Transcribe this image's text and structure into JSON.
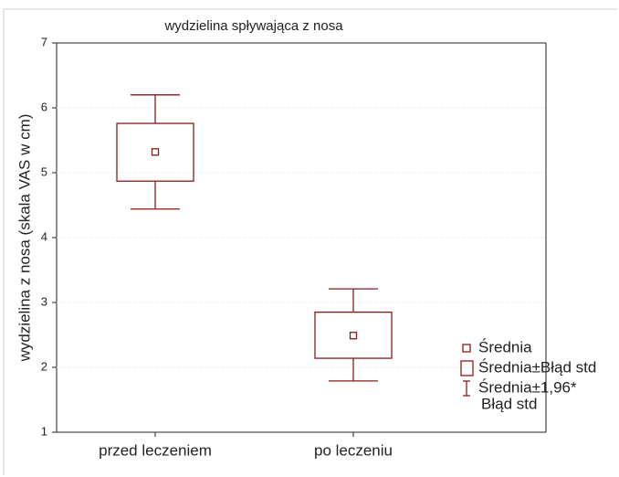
{
  "chart_data": {
    "type": "box",
    "title": "wydzielina spływająca z nosa",
    "y_label": "wydzielina z nosa (skala VAS w cm)",
    "categories": [
      "przed leczeniem",
      "po leczeniu"
    ],
    "mean": [
      5.32,
      2.49
    ],
    "box_low": [
      4.87,
      2.14
    ],
    "box_high": [
      5.76,
      2.85
    ],
    "whisker_low": [
      4.44,
      1.79
    ],
    "whisker_high": [
      6.2,
      3.21
    ],
    "color": "#8b1a1a",
    "ylim": [
      1,
      7
    ],
    "yticks": [
      1,
      2,
      3,
      4,
      5,
      6,
      7
    ],
    "grid": true,
    "legend": [
      [
        "Średnia"
      ],
      [
        "Średnia±Błąd std"
      ],
      [
        "Średnia±1,96*",
        "Błąd std"
      ]
    ]
  }
}
